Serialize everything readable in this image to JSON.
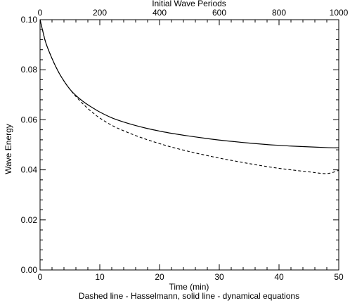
{
  "chart_data": {
    "type": "line",
    "title": "",
    "xlabel": "Time (min)",
    "ylabel": "Wave Energy",
    "x2label": "Initial Wave Periods",
    "caption": "Dashed line - Hasselmann, solid line - dynamical equations",
    "xlim": [
      0,
      50
    ],
    "ylim": [
      0,
      0.1
    ],
    "x2lim": [
      0,
      1000
    ],
    "x_ticks": [
      0,
      10,
      20,
      30,
      40,
      50
    ],
    "x_tick_labels": [
      "0",
      "10",
      "20",
      "30",
      "40",
      "50"
    ],
    "x2_ticks": [
      0,
      200,
      400,
      600,
      800,
      1000
    ],
    "x2_tick_labels": [
      "0",
      "200",
      "400",
      "600",
      "800",
      "1000"
    ],
    "y_ticks": [
      0,
      0.02,
      0.04,
      0.06,
      0.08,
      0.1
    ],
    "y_tick_labels": [
      "0.00",
      "0.02",
      "0.04",
      "0.06",
      "0.08",
      "0.10"
    ],
    "grid": false,
    "series": [
      {
        "style": "solid",
        "x": [
          0,
          0.5,
          1,
          2,
          3,
          4,
          5,
          6,
          7,
          8,
          9,
          10,
          12,
          14,
          16,
          18,
          20,
          22,
          25,
          28,
          30,
          32,
          35,
          38,
          40,
          42,
          45,
          48,
          50
        ],
        "y": [
          0.1,
          0.095,
          0.0905,
          0.0845,
          0.0795,
          0.0755,
          0.0722,
          0.0697,
          0.0677,
          0.066,
          0.0645,
          0.0631,
          0.0608,
          0.0591,
          0.0577,
          0.0565,
          0.0555,
          0.0546,
          0.0535,
          0.0525,
          0.0519,
          0.0514,
          0.0507,
          0.0501,
          0.0498,
          0.0495,
          0.0492,
          0.0489,
          0.0488
        ]
      },
      {
        "style": "dashed",
        "x": [
          0,
          0.5,
          1,
          2,
          3,
          4,
          5,
          6,
          7,
          8,
          9,
          10,
          12,
          14,
          16,
          18,
          20,
          22,
          25,
          28,
          30,
          32,
          35,
          38,
          40,
          42,
          45,
          48,
          50
        ],
        "y": [
          0.1,
          0.095,
          0.0905,
          0.0845,
          0.0795,
          0.0755,
          0.0722,
          0.0693,
          0.0668,
          0.0645,
          0.0625,
          0.0607,
          0.0578,
          0.0556,
          0.0537,
          0.052,
          0.0505,
          0.0491,
          0.0473,
          0.0457,
          0.0447,
          0.0438,
          0.0425,
          0.0413,
          0.0406,
          0.04,
          0.0392,
          0.0385,
          0.0398
        ]
      }
    ]
  }
}
